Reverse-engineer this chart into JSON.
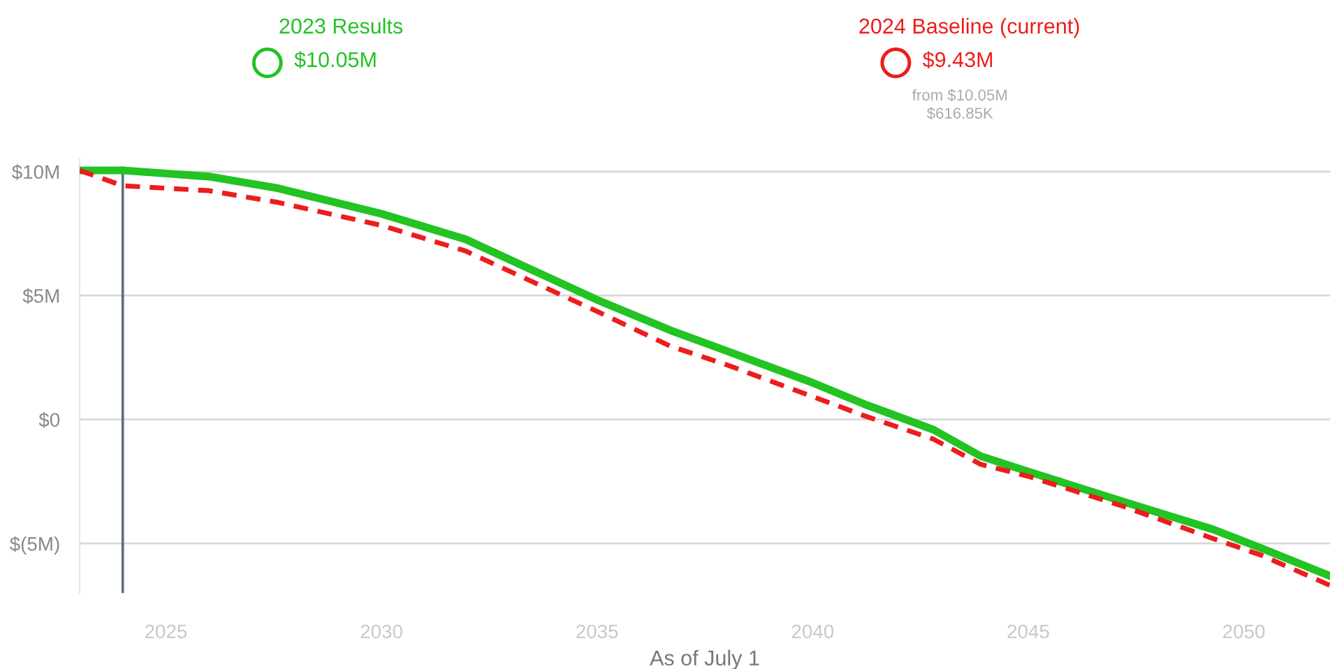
{
  "chart_data": {
    "type": "line",
    "xlabel": "As of July 1",
    "x": [
      2023.0,
      2024.0,
      2026.0,
      2027.6,
      2030.0,
      2031.95,
      2035.0,
      2036.7,
      2038.0,
      2039.9,
      2041.2,
      2042.8,
      2043.9,
      2045.0,
      2047.2,
      2049.3,
      2050.4,
      2052.0
    ],
    "series": [
      {
        "name": "2023 Results",
        "color": "#22c322",
        "line_style": "solid",
        "values": [
          10.05,
          10.05,
          9.8,
          9.33,
          8.3,
          7.27,
          4.83,
          3.6,
          2.77,
          1.55,
          0.62,
          -0.41,
          -1.48,
          -2.1,
          -3.31,
          -4.44,
          -5.19,
          -6.31
        ]
      },
      {
        "name": "2024 Baseline (current)",
        "color": "#ee1c1c",
        "line_style": "dashed",
        "values": [
          10.05,
          9.43,
          9.23,
          8.76,
          7.83,
          6.8,
          4.36,
          2.96,
          2.21,
          0.99,
          0.15,
          -0.79,
          -1.81,
          -2.29,
          -3.5,
          -4.81,
          -5.47,
          -6.69
        ]
      }
    ],
    "annotations": [
      "$10.05M",
      "$9.43M",
      "from $10.05M",
      "$616.85K"
    ],
    "xlim": [
      2023,
      2052
    ],
    "xticks": [
      2025,
      2030,
      2035,
      2040,
      2045,
      2050
    ],
    "ylim": [
      -7,
      10.5
    ],
    "yticks": [
      {
        "value": 10,
        "label": "$10M"
      },
      {
        "value": 5,
        "label": "$5M"
      },
      {
        "value": 0,
        "label": "$0"
      },
      {
        "value": -5,
        "label": "$(5M)"
      }
    ],
    "ref_lines": [
      {
        "axis": "x",
        "value": 2024,
        "color": "#5a6b7d"
      }
    ],
    "grid": "y",
    "legend": "top",
    "marker": "none"
  }
}
